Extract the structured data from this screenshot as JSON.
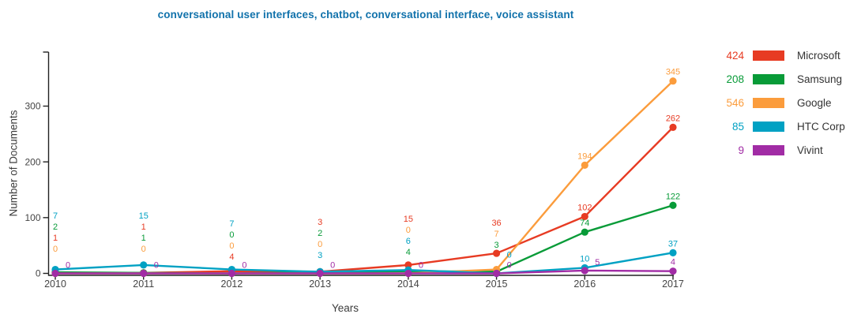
{
  "chart_data": {
    "type": "line",
    "title": "conversational user interfaces, chatbot, conversational interface, voice assistant",
    "title_color": "#1172ab",
    "xlabel": "Years",
    "ylabel": "Number of Documents",
    "x": [
      2010,
      2011,
      2012,
      2013,
      2014,
      2015,
      2016,
      2017
    ],
    "yticks": [
      0,
      100,
      200,
      300
    ],
    "ylim": [
      0,
      397
    ],
    "grid": false,
    "legend_position": "right",
    "series": [
      {
        "name": "Microsoft",
        "legend_total": 424,
        "color": "#e73b23",
        "values": [
          1,
          1,
          4,
          3,
          15,
          36,
          102,
          262
        ]
      },
      {
        "name": "Samsung",
        "legend_total": 208,
        "color": "#089b38",
        "values": [
          2,
          1,
          0,
          2,
          4,
          3,
          74,
          122
        ]
      },
      {
        "name": "Google",
        "legend_total": 546,
        "color": "#fb9c3c",
        "values": [
          0,
          0,
          0,
          0,
          0,
          7,
          194,
          345
        ]
      },
      {
        "name": "HTC Corp",
        "legend_total": 85,
        "color": "#00a1c3",
        "values": [
          7,
          15,
          7,
          3,
          6,
          0,
          10,
          37
        ]
      },
      {
        "name": "Vivint",
        "legend_total": 9,
        "color": "#a12ca5",
        "values": [
          0,
          0,
          0,
          0,
          0,
          0,
          5,
          4
        ]
      }
    ],
    "label_layout": {
      "stacked_label_columns": [
        {
          "year": 2010,
          "top_y": 273,
          "top_to_bottom": [
            "HTC Corp",
            "Samsung",
            "Microsoft",
            "Google"
          ]
        },
        {
          "year": 2011,
          "top_y": 273,
          "top_to_bottom": [
            "HTC Corp",
            "Microsoft",
            "Samsung",
            "Google"
          ]
        },
        {
          "year": 2012,
          "top_y": 283,
          "top_to_bottom": [
            "HTC Corp",
            "Samsung",
            "Google",
            "Microsoft"
          ]
        },
        {
          "year": 2013,
          "top_y": 281,
          "top_to_bottom": [
            "Microsoft",
            "Samsung",
            "Google",
            "HTC Corp"
          ]
        },
        {
          "year": 2014,
          "top_y": 277,
          "top_to_bottom": [
            "Microsoft",
            "Google",
            "HTC Corp",
            "Samsung"
          ]
        },
        {
          "year": 2015,
          "top_y": 282,
          "top_to_bottom": [
            "Microsoft",
            "Google",
            "Samsung"
          ]
        }
      ],
      "side_labels_bottom_to_top": [
        {
          "year": 2010,
          "series": [
            "Vivint"
          ]
        },
        {
          "year": 2011,
          "series": [
            "Vivint"
          ]
        },
        {
          "year": 2012,
          "series": [
            "Vivint"
          ]
        },
        {
          "year": 2013,
          "series": [
            "Vivint"
          ]
        },
        {
          "year": 2014,
          "series": [
            "Vivint"
          ]
        },
        {
          "year": 2015,
          "series": [
            "Vivint",
            "HTC Corp"
          ]
        },
        {
          "year": 2016,
          "series": [
            "Vivint"
          ]
        }
      ]
    }
  }
}
